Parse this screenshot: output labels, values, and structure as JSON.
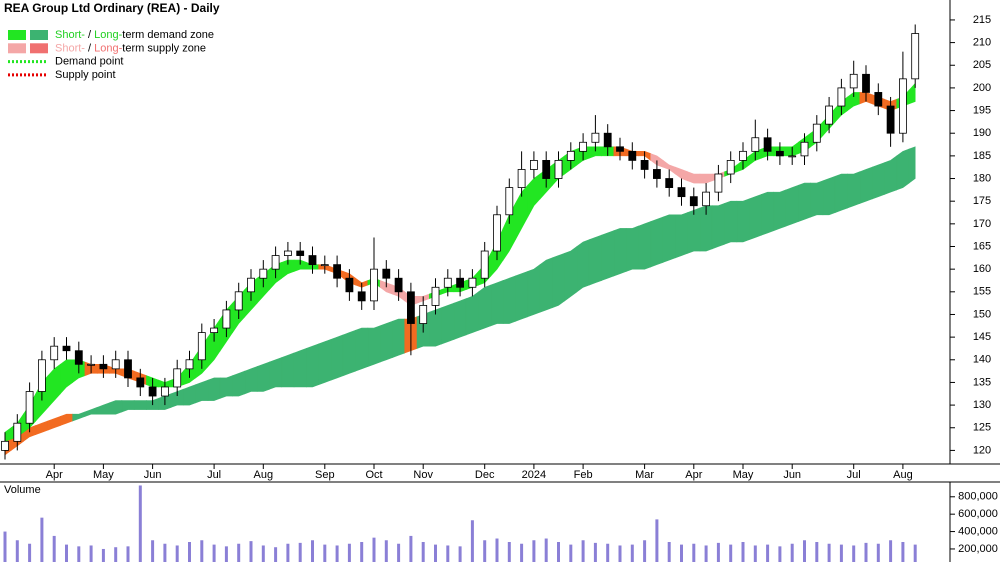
{
  "chart_data": [
    {
      "type": "candlestick",
      "title": "REA Group Ltd Ordinary (REA) - Daily",
      "categories": [
        null,
        null,
        null,
        null,
        "Apr",
        null,
        null,
        null,
        "May",
        null,
        null,
        null,
        "Jun",
        null,
        null,
        null,
        null,
        "Jul",
        null,
        null,
        null,
        "Aug",
        null,
        null,
        null,
        null,
        "Sep",
        null,
        null,
        null,
        "Oct",
        null,
        null,
        null,
        "Nov",
        null,
        null,
        null,
        null,
        "Dec",
        null,
        null,
        null,
        "2024",
        null,
        null,
        null,
        "Feb",
        null,
        null,
        null,
        null,
        "Mar",
        null,
        null,
        null,
        "Apr",
        null,
        null,
        null,
        "May",
        null,
        null,
        null,
        "Jun",
        null,
        null,
        null,
        null,
        "Jul",
        null,
        null,
        null,
        "Aug",
        null
      ],
      "open": [
        120,
        122,
        126,
        133,
        140,
        143,
        142,
        139,
        139,
        138,
        140,
        136,
        134,
        132,
        134,
        138,
        140,
        146,
        147,
        151,
        155,
        158,
        160,
        163,
        164,
        163,
        161,
        161,
        158,
        155,
        153,
        160,
        158,
        155,
        148,
        152,
        156,
        158,
        156,
        158,
        164,
        172,
        178,
        182,
        184,
        180,
        184,
        186,
        188,
        190,
        187,
        186,
        184,
        182,
        180,
        178,
        176,
        174,
        177,
        181,
        184,
        186,
        189,
        186,
        185,
        185,
        188,
        192,
        196,
        200,
        203,
        199,
        196,
        190,
        202
      ],
      "high": [
        124,
        128,
        135,
        142,
        145,
        145,
        144,
        141,
        141,
        142,
        142,
        138,
        136,
        136,
        140,
        142,
        148,
        149,
        153,
        157,
        160,
        162,
        165,
        166,
        166,
        165,
        163,
        163,
        160,
        157,
        167,
        162,
        160,
        157,
        154,
        158,
        160,
        160,
        160,
        166,
        174,
        180,
        186,
        186,
        186,
        186,
        188,
        190,
        194,
        192,
        189,
        188,
        186,
        184,
        182,
        180,
        178,
        179,
        183,
        186,
        188,
        193,
        191,
        188,
        187,
        190,
        194,
        198,
        202,
        206,
        205,
        201,
        198,
        208,
        214
      ],
      "low": [
        118,
        120,
        124,
        131,
        138,
        140,
        137,
        137,
        136,
        136,
        134,
        132,
        130,
        130,
        132,
        136,
        138,
        144,
        145,
        149,
        153,
        156,
        158,
        161,
        161,
        159,
        159,
        156,
        153,
        151,
        151,
        156,
        153,
        141,
        146,
        150,
        154,
        154,
        154,
        156,
        162,
        170,
        176,
        180,
        178,
        178,
        182,
        184,
        186,
        185,
        184,
        182,
        180,
        178,
        176,
        174,
        172,
        172,
        175,
        179,
        182,
        184,
        184,
        183,
        183,
        183,
        186,
        190,
        194,
        198,
        197,
        194,
        187,
        188,
        200
      ],
      "close": [
        122,
        126,
        133,
        140,
        143,
        142,
        139,
        139,
        138,
        140,
        136,
        134,
        132,
        134,
        138,
        140,
        146,
        147,
        151,
        155,
        158,
        160,
        163,
        164,
        163,
        161,
        161,
        158,
        155,
        153,
        160,
        158,
        155,
        148,
        152,
        156,
        158,
        156,
        158,
        164,
        172,
        178,
        182,
        184,
        180,
        184,
        186,
        188,
        190,
        187,
        186,
        184,
        182,
        180,
        178,
        176,
        174,
        177,
        181,
        184,
        186,
        189,
        186,
        185,
        185,
        188,
        192,
        196,
        200,
        203,
        199,
        196,
        190,
        202,
        212
      ],
      "up_color": "#ffffff",
      "down_color": "#000000",
      "bands": [
        {
          "upper": [
            123,
            124,
            125,
            126,
            127,
            128,
            128,
            129,
            130,
            131,
            131,
            131,
            131,
            132,
            133,
            134,
            135,
            136,
            136,
            137,
            138,
            139,
            140,
            141,
            142,
            143,
            144,
            145,
            146,
            147,
            147,
            148,
            149,
            149,
            150,
            151,
            152,
            153,
            154,
            156,
            157,
            158,
            159,
            160,
            162,
            163,
            164,
            166,
            167,
            168,
            169,
            169,
            170,
            171,
            172,
            172,
            173,
            174,
            174,
            175,
            175,
            176,
            177,
            177,
            178,
            179,
            179,
            180,
            181,
            181,
            182,
            183,
            184,
            186,
            187
          ],
          "lower": [
            119,
            121,
            123,
            124,
            125,
            126,
            127,
            128,
            128,
            128,
            129,
            129,
            129,
            129,
            130,
            130,
            131,
            131,
            132,
            132,
            133,
            133,
            134,
            134,
            134,
            134,
            135,
            136,
            137,
            138,
            139,
            140,
            141,
            142,
            143,
            143,
            144,
            145,
            146,
            147,
            148,
            148,
            149,
            150,
            151,
            152,
            154,
            156,
            157,
            158,
            159,
            160,
            160,
            161,
            162,
            163,
            164,
            164,
            165,
            166,
            166,
            167,
            168,
            169,
            170,
            171,
            172,
            172,
            173,
            174,
            175,
            176,
            177,
            178,
            180
          ],
          "colors": [
            "#f26b21",
            "#f26b21",
            "#f26b21",
            "#f26b21",
            "#f26b21",
            "#f26b21",
            "#3cb371",
            "#3cb371",
            "#3cb371",
            "#3cb371",
            "#3cb371",
            "#3cb371",
            "#3cb371",
            "#3cb371",
            "#3cb371",
            "#3cb371",
            "#3cb371",
            "#3cb371",
            "#3cb371",
            "#3cb371",
            "#3cb371",
            "#3cb371",
            "#3cb371",
            "#3cb371",
            "#3cb371",
            "#3cb371",
            "#3cb371",
            "#3cb371",
            "#3cb371",
            "#3cb371",
            "#3cb371",
            "#3cb371",
            "#3cb371",
            "#f26b21",
            "#3cb371",
            "#3cb371",
            "#3cb371",
            "#3cb371",
            "#3cb371",
            "#3cb371",
            "#3cb371",
            "#3cb371",
            "#3cb371",
            "#3cb371",
            "#3cb371",
            "#3cb371",
            "#3cb371",
            "#3cb371",
            "#3cb371",
            "#3cb371",
            "#3cb371",
            "#3cb371",
            "#3cb371",
            "#3cb371",
            "#3cb371",
            "#3cb371",
            "#3cb371",
            "#3cb371",
            "#3cb371",
            "#3cb371",
            "#3cb371",
            "#3cb371",
            "#3cb371",
            "#3cb371",
            "#3cb371",
            "#3cb371",
            "#3cb371",
            "#3cb371",
            "#3cb371",
            "#3cb371",
            "#3cb371",
            "#3cb371",
            "#3cb371",
            "#3cb371",
            "#3cb371"
          ]
        },
        {
          "upper": [
            124,
            126,
            130,
            135,
            138,
            140,
            140,
            139,
            139,
            138,
            138,
            137,
            136,
            135,
            136,
            139,
            143,
            147,
            151,
            154,
            157,
            159,
            161,
            162,
            162,
            161,
            161,
            160,
            159,
            157,
            158,
            157,
            156,
            154,
            154,
            155,
            156,
            157,
            158,
            161,
            166,
            172,
            177,
            180,
            182,
            184,
            186,
            187,
            187,
            187,
            187,
            186,
            186,
            185,
            183,
            182,
            181,
            181,
            181,
            182,
            184,
            186,
            187,
            187,
            187,
            189,
            191,
            194,
            197,
            199,
            199,
            198,
            197,
            198,
            201
          ],
          "lower": [
            122,
            123,
            125,
            128,
            131,
            134,
            136,
            137,
            137,
            137,
            136,
            135,
            134,
            134,
            134,
            135,
            137,
            140,
            144,
            148,
            151,
            154,
            157,
            159,
            160,
            160,
            160,
            159,
            157,
            156,
            157,
            155,
            154,
            152,
            153,
            154,
            155,
            155,
            156,
            157,
            160,
            164,
            169,
            174,
            177,
            180,
            182,
            184,
            185,
            185,
            185,
            185,
            185,
            183,
            182,
            180,
            179,
            179,
            180,
            181,
            182,
            184,
            185,
            185,
            185,
            186,
            188,
            191,
            194,
            196,
            197,
            196,
            195,
            196,
            197
          ],
          "colors": [
            "#22e622",
            "#22e622",
            "#22e622",
            "#22e622",
            "#22e622",
            "#22e622",
            "#22e622",
            "#f26b21",
            "#f26b21",
            "#f26b21",
            "#f26b21",
            "#f26b21",
            "#22e622",
            "#22e622",
            "#22e622",
            "#22e622",
            "#22e622",
            "#22e622",
            "#22e622",
            "#22e622",
            "#22e622",
            "#22e622",
            "#22e622",
            "#22e622",
            "#22e622",
            "#22e622",
            "#f26b21",
            "#f26b21",
            "#f26b21",
            "#f26b21",
            "#22e622",
            "#f4a7a7",
            "#f4a7a7",
            "#f4a7a7",
            "#f4a7a7",
            "#22e622",
            "#22e622",
            "#22e622",
            "#22e622",
            "#22e622",
            "#22e622",
            "#22e622",
            "#22e622",
            "#22e622",
            "#22e622",
            "#22e622",
            "#22e622",
            "#22e622",
            "#22e622",
            "#22e622",
            "#f26b21",
            "#f26b21",
            "#f26b21",
            "#f4a7a7",
            "#f4a7a7",
            "#f4a7a7",
            "#f4a7a7",
            "#f4a7a7",
            "#f4a7a7",
            "#22e622",
            "#22e622",
            "#22e622",
            "#22e622",
            "#22e622",
            "#22e622",
            "#22e622",
            "#22e622",
            "#22e622",
            "#22e622",
            "#22e622",
            "#f26b21",
            "#f26b21",
            "#f26b21",
            "#22e622",
            "#22e622"
          ]
        }
      ],
      "legend": [
        {
          "parts": [
            "Short-",
            " / ",
            "Long-",
            "term demand zone"
          ],
          "part_colors": [
            "#22d022",
            "#000000",
            "#22d022",
            "#000000"
          ],
          "swatches": [
            "#22e622",
            "#3cb371"
          ]
        },
        {
          "parts": [
            "Short-",
            " / ",
            "Long-",
            "term supply zone"
          ],
          "part_colors": [
            "#f4a7a7",
            "#000000",
            "#f07070",
            "#000000"
          ],
          "swatches": [
            "#f4a7a7",
            "#f07070"
          ]
        },
        {
          "parts": [
            "Demand point"
          ],
          "line_color": "#22e622"
        },
        {
          "parts": [
            "Supply point"
          ],
          "line_color": "#e60000"
        }
      ],
      "ylim": [
        117,
        219.4
      ],
      "yticks": [
        120,
        125,
        130,
        135,
        140,
        145,
        150,
        155,
        160,
        165,
        170,
        175,
        180,
        185,
        190,
        195,
        200,
        205,
        210,
        215
      ]
    },
    {
      "type": "bar",
      "title": "Volume",
      "title_color": "#4b2a8a",
      "color": "#8a7fd6",
      "values": [
        400000,
        300000,
        260000,
        560000,
        350000,
        250000,
        230000,
        240000,
        200000,
        220000,
        230000,
        930000,
        300000,
        260000,
        240000,
        280000,
        300000,
        250000,
        230000,
        260000,
        290000,
        240000,
        220000,
        260000,
        270000,
        300000,
        250000,
        240000,
        260000,
        280000,
        330000,
        300000,
        260000,
        350000,
        280000,
        250000,
        240000,
        230000,
        530000,
        300000,
        320000,
        280000,
        260000,
        300000,
        320000,
        280000,
        250000,
        300000,
        270000,
        260000,
        240000,
        250000,
        300000,
        540000,
        280000,
        250000,
        260000,
        240000,
        270000,
        250000,
        280000,
        240000,
        250000,
        230000,
        260000,
        300000,
        280000,
        260000,
        250000,
        240000,
        270000,
        260000,
        300000,
        280000,
        250000
      ],
      "ylim": [
        50000,
        970000
      ],
      "yticks": [
        {
          "value": 200000,
          "label": "200,000"
        },
        {
          "value": 400000,
          "label": "400,000"
        },
        {
          "value": 600000,
          "label": "600,000"
        },
        {
          "value": 800000,
          "label": "800,000"
        }
      ]
    }
  ]
}
